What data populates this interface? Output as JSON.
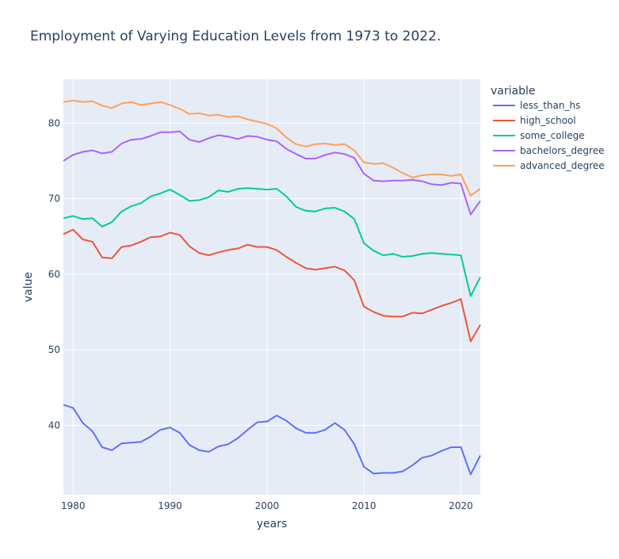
{
  "chart_data": {
    "type": "line",
    "title": "Employment of Varying Education Levels from 1973 to 2022.",
    "xlabel": "years",
    "ylabel": "value",
    "legend_title": "variable",
    "legend_position": "right",
    "grid": true,
    "xlim": [
      1979,
      2022
    ],
    "ylim": [
      30.8,
      85.8
    ],
    "xticks": [
      1980,
      1990,
      2000,
      2010,
      2020
    ],
    "yticks": [
      40,
      50,
      60,
      70,
      80
    ],
    "x": [
      1979,
      1980,
      1981,
      1982,
      1983,
      1984,
      1985,
      1986,
      1987,
      1988,
      1989,
      1990,
      1991,
      1992,
      1993,
      1994,
      1995,
      1996,
      1997,
      1998,
      1999,
      2000,
      2001,
      2002,
      2003,
      2004,
      2005,
      2006,
      2007,
      2008,
      2009,
      2010,
      2011,
      2012,
      2013,
      2014,
      2015,
      2016,
      2017,
      2018,
      2019,
      2020,
      2021,
      2022
    ],
    "series": [
      {
        "name": "less_than_hs",
        "color": "#636efa",
        "values": [
          42.7,
          42.3,
          40.3,
          39.2,
          37.1,
          36.7,
          37.6,
          37.7,
          37.8,
          38.5,
          39.4,
          39.7,
          39.0,
          37.4,
          36.7,
          36.5,
          37.2,
          37.5,
          38.3,
          39.4,
          40.4,
          40.5,
          41.3,
          40.6,
          39.6,
          39.0,
          39.0,
          39.4,
          40.3,
          39.4,
          37.5,
          34.5,
          33.6,
          33.7,
          33.7,
          33.9,
          34.7,
          35.7,
          36.0,
          36.6,
          37.1,
          37.1,
          33.5,
          36.0
        ]
      },
      {
        "name": "high_school",
        "color": "#ef553b",
        "values": [
          65.3,
          65.9,
          64.6,
          64.3,
          62.2,
          62.1,
          63.6,
          63.8,
          64.3,
          64.9,
          65.0,
          65.5,
          65.2,
          63.7,
          62.8,
          62.5,
          62.9,
          63.2,
          63.4,
          63.9,
          63.6,
          63.6,
          63.2,
          62.3,
          61.5,
          60.8,
          60.6,
          60.8,
          61.0,
          60.5,
          59.2,
          55.7,
          55.0,
          54.5,
          54.4,
          54.4,
          54.9,
          54.8,
          55.3,
          55.8,
          56.2,
          56.7,
          51.1,
          53.3
        ]
      },
      {
        "name": "some_college",
        "color": "#00cc96",
        "values": [
          67.4,
          67.7,
          67.3,
          67.4,
          66.3,
          66.9,
          68.3,
          69.0,
          69.4,
          70.3,
          70.7,
          71.2,
          70.5,
          69.7,
          69.8,
          70.2,
          71.1,
          70.9,
          71.3,
          71.4,
          71.3,
          71.2,
          71.3,
          70.3,
          68.9,
          68.4,
          68.3,
          68.7,
          68.8,
          68.3,
          67.3,
          64.1,
          63.1,
          62.5,
          62.7,
          62.3,
          62.4,
          62.7,
          62.8,
          62.7,
          62.6,
          62.5,
          57.1,
          59.6
        ]
      },
      {
        "name": "bachelors_degree",
        "color": "#ab63fa",
        "values": [
          75.0,
          75.8,
          76.2,
          76.4,
          76.0,
          76.2,
          77.3,
          77.8,
          77.9,
          78.3,
          78.8,
          78.8,
          78.9,
          77.8,
          77.5,
          78.0,
          78.4,
          78.2,
          77.9,
          78.3,
          78.2,
          77.8,
          77.6,
          76.6,
          75.9,
          75.3,
          75.3,
          75.8,
          76.1,
          75.9,
          75.4,
          73.3,
          72.4,
          72.3,
          72.4,
          72.4,
          72.5,
          72.3,
          71.9,
          71.8,
          72.1,
          72.0,
          67.9,
          69.7
        ]
      },
      {
        "name": "advanced_degree",
        "color": "#ffa15a",
        "values": [
          82.8,
          83.0,
          82.8,
          82.9,
          82.3,
          82.0,
          82.6,
          82.8,
          82.4,
          82.6,
          82.8,
          82.4,
          81.9,
          81.2,
          81.3,
          81.0,
          81.1,
          80.8,
          80.9,
          80.5,
          80.2,
          79.9,
          79.3,
          78.1,
          77.2,
          76.9,
          77.2,
          77.3,
          77.1,
          77.2,
          76.4,
          74.8,
          74.6,
          74.7,
          74.1,
          73.4,
          72.8,
          73.1,
          73.2,
          73.2,
          73.0,
          73.2,
          70.4,
          71.3
        ]
      }
    ]
  },
  "colors": {
    "plot_bg": "#e5ecf6",
    "grid": "#ffffff",
    "text": "#2a3f5f"
  }
}
